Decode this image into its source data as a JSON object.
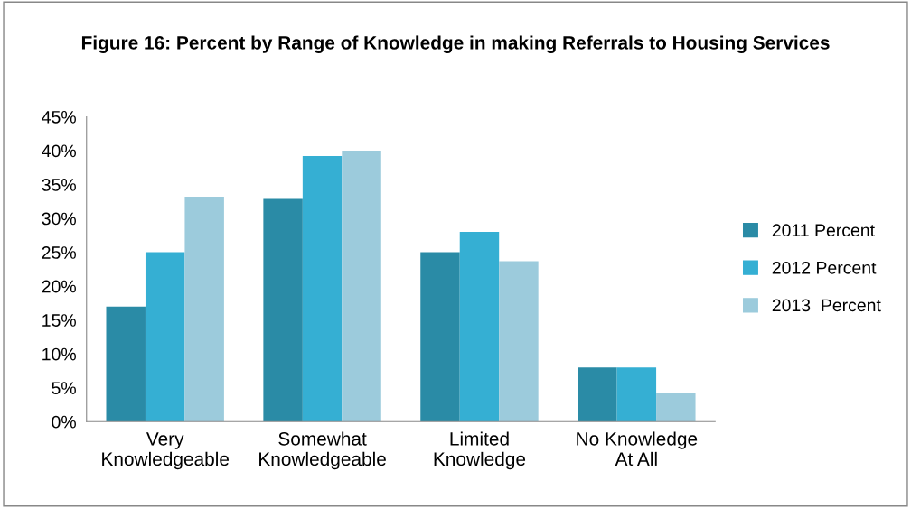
{
  "chart_data": {
    "type": "bar",
    "title": "Figure 16: Percent by Range of Knowledge in making Referrals to Housing Services",
    "categories": [
      "Very\nKnowledgeable",
      "Somewhat\nKnowledgeable",
      "Limited\nKnowledge",
      "No Knowledge\nAt All"
    ],
    "series": [
      {
        "name": "2011 Percent",
        "color": "#2a8ba6",
        "values": [
          17,
          33,
          25,
          8
        ]
      },
      {
        "name": "2012 Percent",
        "color": "#35afd3",
        "values": [
          25,
          39.2,
          28,
          8
        ]
      },
      {
        "name": "2013  Percent",
        "color": "#9ccbdc",
        "values": [
          33.2,
          40,
          23.7,
          4.2
        ]
      }
    ],
    "ylim": [
      0,
      45
    ],
    "yticks": [
      {
        "value": 0,
        "label": "0%"
      },
      {
        "value": 5,
        "label": "5%"
      },
      {
        "value": 10,
        "label": "10%"
      },
      {
        "value": 15,
        "label": "15%"
      },
      {
        "value": 20,
        "label": "20%"
      },
      {
        "value": 25,
        "label": "25%"
      },
      {
        "value": 30,
        "label": "30%"
      },
      {
        "value": 35,
        "label": "35%"
      },
      {
        "value": 40,
        "label": "40%"
      },
      {
        "value": 45,
        "label": "45%"
      }
    ],
    "grid": false,
    "legend": "right"
  }
}
